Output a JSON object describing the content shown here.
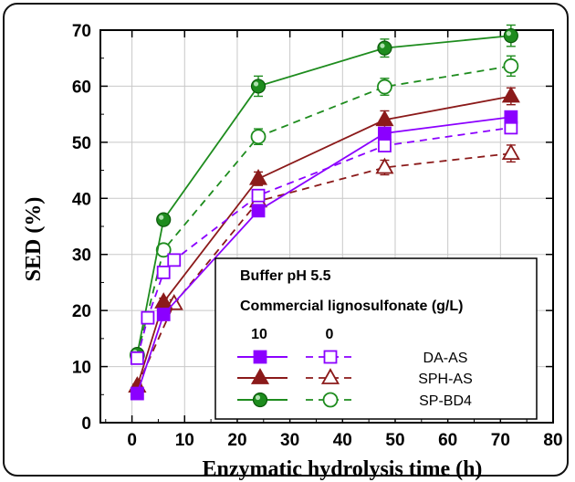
{
  "chart_data": {
    "type": "line",
    "xlabel": "Enzymatic hydrolysis time (h)",
    "ylabel": "SED (%)",
    "xlim": [
      -6,
      80
    ],
    "ylim": [
      0,
      70
    ],
    "xticks": [
      0,
      10,
      20,
      30,
      40,
      50,
      60,
      70,
      80
    ],
    "yticks": [
      0,
      10,
      20,
      30,
      40,
      50,
      60,
      70
    ],
    "grid": true,
    "legend": {
      "placement": "bottom-right",
      "title1": "Buffer pH 5.5",
      "title2": "Commercial lignosulfonate (g/L)",
      "col_solid": "10",
      "col_dashed": "0",
      "entries": [
        "DA-AS",
        "SPH-AS",
        "SP-BD4"
      ]
    },
    "series": [
      {
        "name": "DA-AS",
        "lignosulfonate": "10",
        "color": "#8B00FF",
        "marker": "square",
        "filled": true,
        "dashed": false,
        "x": [
          1,
          6,
          24,
          48,
          72
        ],
        "y": [
          5.2,
          19.3,
          37.8,
          51.6,
          54.5
        ],
        "err": [
          0.4,
          0.6,
          0.8,
          1.0,
          1.0
        ]
      },
      {
        "name": "DA-AS",
        "lignosulfonate": "0",
        "color": "#8B00FF",
        "marker": "square",
        "filled": false,
        "dashed": true,
        "x": [
          1,
          3,
          6,
          8,
          24,
          48,
          72
        ],
        "y": [
          11.5,
          18.7,
          26.8,
          29.0,
          40.5,
          49.4,
          52.6
        ],
        "err": [
          0.4,
          0.5,
          0.6,
          0.6,
          0.8,
          1.0,
          1.0
        ]
      },
      {
        "name": "SPH-AS",
        "lignosulfonate": "10",
        "color": "#8B1A1A",
        "marker": "triangle",
        "filled": true,
        "dashed": false,
        "x": [
          1,
          6,
          24,
          48,
          72
        ],
        "y": [
          6.5,
          21.5,
          43.5,
          54.0,
          58.2
        ],
        "err": [
          0.4,
          0.7,
          1.2,
          1.6,
          1.5
        ]
      },
      {
        "name": "SPH-AS",
        "lignosulfonate": "0",
        "color": "#8B1A1A",
        "marker": "triangle",
        "filled": false,
        "dashed": true,
        "x": [
          1,
          8,
          24,
          48,
          72
        ],
        "y": [
          6.5,
          21.2,
          39.5,
          45.5,
          48.0
        ],
        "err": [
          0.4,
          0.7,
          1.0,
          1.3,
          1.5
        ]
      },
      {
        "name": "SP-BD4",
        "lignosulfonate": "10",
        "color": "#1E8C1E",
        "marker": "circle",
        "filled": true,
        "dashed": false,
        "x": [
          1,
          6,
          24,
          48,
          72
        ],
        "y": [
          12.2,
          36.2,
          60.0,
          66.8,
          69.0
        ],
        "err": [
          0.5,
          0.8,
          1.8,
          1.6,
          1.9
        ]
      },
      {
        "name": "SP-BD4",
        "lignosulfonate": "0",
        "color": "#1E8C1E",
        "marker": "circle",
        "filled": false,
        "dashed": true,
        "x": [
          1,
          6,
          24,
          48,
          72
        ],
        "y": [
          12.0,
          30.8,
          51.0,
          59.9,
          63.6
        ],
        "err": [
          0.5,
          1.0,
          1.4,
          1.5,
          1.8
        ]
      }
    ]
  }
}
